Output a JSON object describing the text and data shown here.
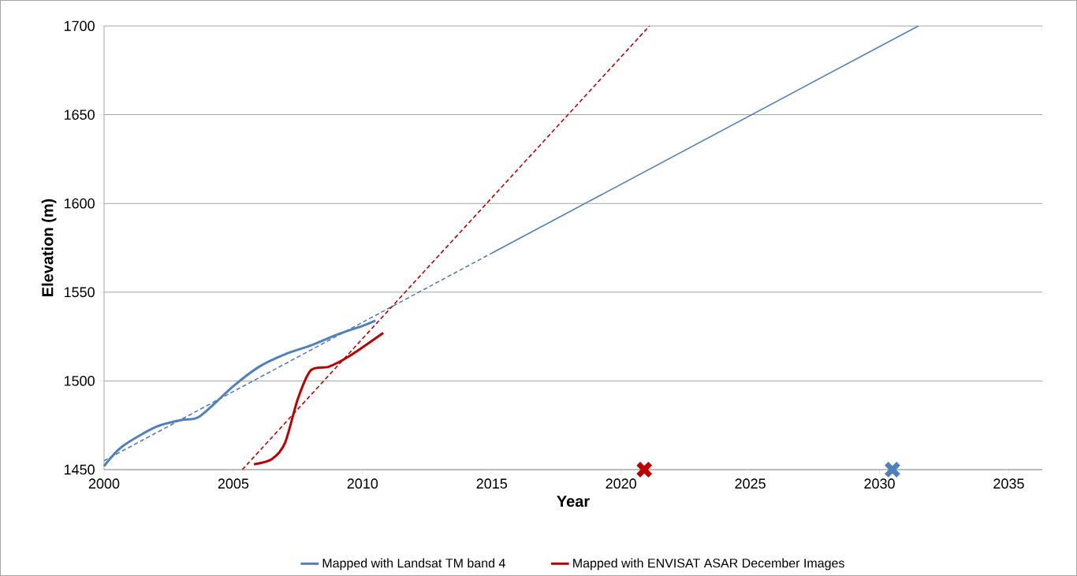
{
  "chart_data": {
    "type": "line",
    "xlabel": "Year",
    "ylabel": "Elevation (m)",
    "xlim": [
      2000,
      2036.3
    ],
    "ylim": [
      1450,
      1700
    ],
    "xticks": [
      2000,
      2005,
      2010,
      2015,
      2020,
      2025,
      2030,
      2035
    ],
    "yticks": [
      1450,
      1500,
      1550,
      1600,
      1650,
      1700
    ],
    "grid": "y",
    "legend": "bottom",
    "series": [
      {
        "name": "Mapped with Landsat TM band 4",
        "color": "#4f81bd",
        "x": [
          2000,
          2000.7,
          2002,
          2003,
          2003.7,
          2005,
          2006,
          2007,
          2008,
          2009,
          2010,
          2010.5
        ],
        "values": [
          1452,
          1463,
          1474,
          1478,
          1480,
          1497,
          1508,
          1515,
          1520,
          1526,
          1531,
          1534
        ]
      },
      {
        "name": "Mapped with ENVISAT ASAR December Images",
        "color": "#c00000",
        "x": [
          2005.8,
          2006.5,
          2007,
          2007.5,
          2008,
          2008.7,
          2009.5,
          2010.8
        ],
        "values": [
          1453,
          1456,
          1465,
          1490,
          1506,
          1508,
          1514,
          1527
        ]
      },
      {
        "color": "#4f81bd",
        "line_style": "dashed",
        "x": [
          2000,
          2015
        ],
        "values": [
          1455,
          1572
        ]
      },
      {
        "color": "#4f81bd",
        "x": [
          2015,
          2031.5
        ],
        "values": [
          1572,
          1700
        ]
      },
      {
        "color": "#c00000",
        "line_style": "dashed",
        "x": [
          2005.35,
          2021.1
        ],
        "values": [
          1450,
          1700
        ]
      },
      {
        "type": "scatter",
        "marker": "cross",
        "color": "#c00000",
        "x": [
          2020.9
        ],
        "values": [
          1450
        ]
      },
      {
        "type": "scatter",
        "marker": "cross",
        "color": "#4f81bd",
        "x": [
          2030.5
        ],
        "values": [
          1450
        ]
      }
    ]
  }
}
